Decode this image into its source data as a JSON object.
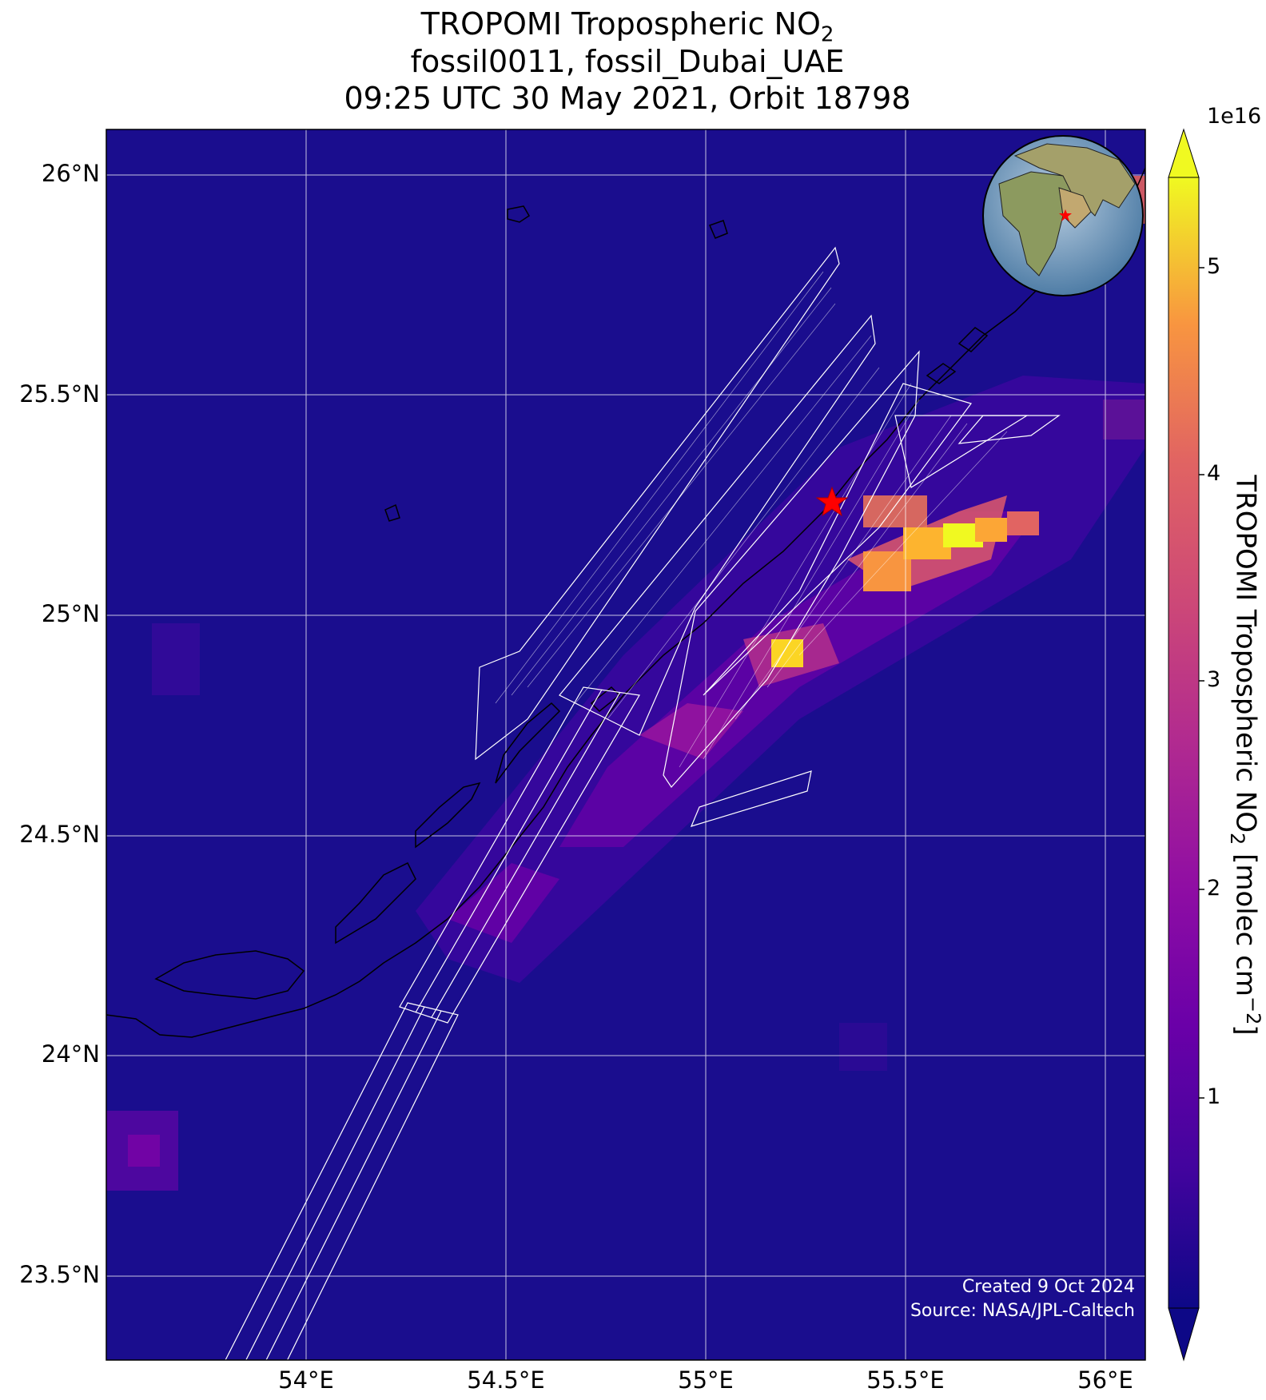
{
  "title": {
    "line1_main": "TROPOMI Tropospheric NO",
    "line1_sub": "2",
    "line2": "fossil0011, fossil_Dubai_UAE",
    "line3": "09:25 UTC 30 May 2021, Orbit 18798"
  },
  "axes": {
    "lon_ticks": [
      "54°E",
      "54.5°E",
      "55°E",
      "55.5°E",
      "56°E"
    ],
    "lat_ticks": [
      "26°N",
      "25.5°N",
      "25°N",
      "24.5°N",
      "24°N",
      "23.5°N"
    ],
    "lon_values": [
      54.0,
      54.5,
      55.0,
      55.5,
      56.0
    ],
    "lat_values": [
      26.0,
      25.5,
      25.0,
      24.5,
      24.0,
      23.5
    ],
    "lon_range": [
      53.5,
      56.1
    ],
    "lat_range": [
      23.3,
      26.1
    ],
    "grid": true
  },
  "target": {
    "lon": 55.31,
    "lat": 25.27,
    "marker": "star",
    "color": "#ff0000"
  },
  "colorbar": {
    "exponent_label": "1e16",
    "ticks": [
      "1",
      "2",
      "3",
      "4",
      "5"
    ],
    "tick_values": [
      1,
      2,
      3,
      4,
      5
    ],
    "range": [
      0,
      5.4
    ],
    "colormap": "plasma",
    "extend": "both",
    "label_main": "TROPOMI Tropospheric NO",
    "label_sub": "2",
    "label_unit_open": " [molec cm",
    "label_unit_sup": "−2",
    "label_unit_close": "]"
  },
  "credits": {
    "created": "Created 9 Oct 2024",
    "source": "Source: NASA/JPL-Caltech"
  },
  "colors": {
    "background_low": "#1a0d8e",
    "footprint_outline": "#ffffff",
    "coastline": "#000000",
    "plume_high": "#f0f921"
  }
}
